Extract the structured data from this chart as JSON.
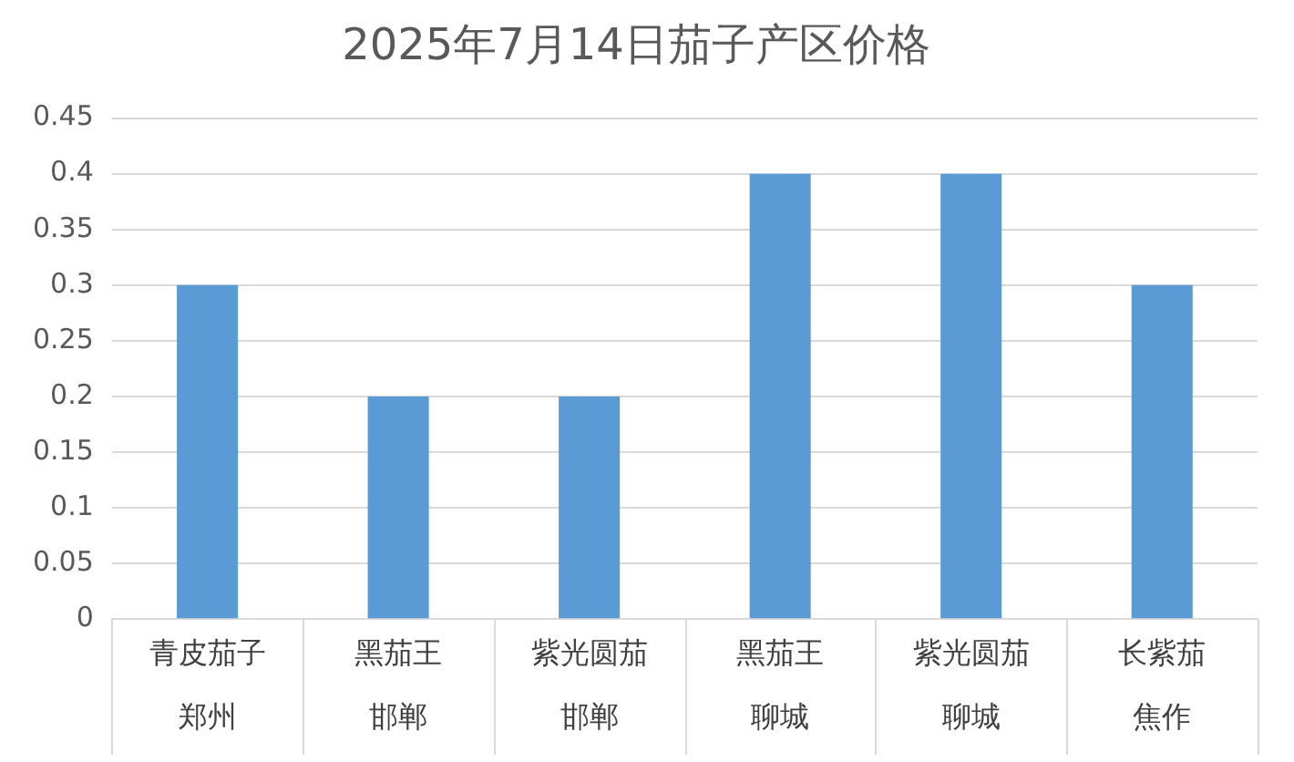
{
  "chart_data": {
    "type": "bar",
    "title": "2025年7月14日茄子产区价格",
    "categories": [
      "青皮茄子郑州",
      "黑茄王邯郸",
      "紫光圆茄邯郸",
      "黑茄王聊城",
      "紫光圆茄聊城",
      "长紫茄焦作"
    ],
    "values": [
      0.3,
      0.2,
      0.2,
      0.4,
      0.4,
      0.3
    ],
    "color": "#5b9bd5",
    "ylim": [
      0,
      0.45
    ],
    "yticks": [
      0,
      0.05,
      0.1,
      0.15,
      0.2,
      0.25,
      0.3,
      0.35,
      0.4,
      0.45
    ],
    "grid": "y",
    "legend": false
  }
}
